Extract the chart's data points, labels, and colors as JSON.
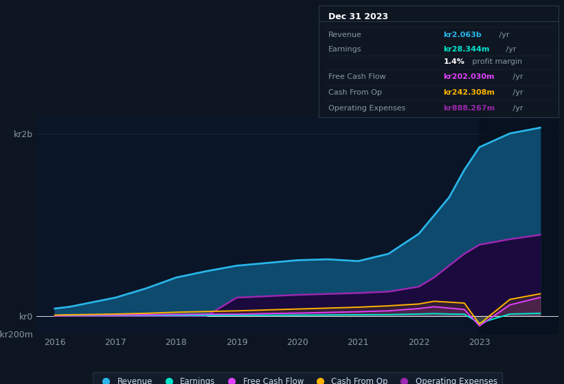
{
  "background_color": "#0d1520",
  "plot_bg_color": "#0a1628",
  "grid_color": "#1a2535",
  "years": [
    2016,
    2016.25,
    2017,
    2017.5,
    2018,
    2018.5,
    2019,
    2019.5,
    2020,
    2020.5,
    2021,
    2021.5,
    2022,
    2022.25,
    2022.5,
    2022.75,
    2023,
    2023.5,
    2024
  ],
  "revenue": [
    80,
    100,
    200,
    300,
    420,
    490,
    550,
    580,
    610,
    620,
    600,
    680,
    900,
    1100,
    1300,
    1600,
    1850,
    2000,
    2063
  ],
  "earnings": [
    5,
    5,
    6,
    6,
    5,
    5,
    6,
    7,
    8,
    10,
    12,
    14,
    20,
    25,
    20,
    18,
    -80,
    20,
    28
  ],
  "free_cash_flow": [
    5,
    8,
    10,
    12,
    15,
    18,
    18,
    25,
    30,
    38,
    45,
    55,
    80,
    100,
    85,
    70,
    -110,
    120,
    202
  ],
  "cash_from_op": [
    8,
    12,
    20,
    28,
    40,
    48,
    55,
    65,
    75,
    85,
    95,
    110,
    130,
    160,
    150,
    140,
    -90,
    180,
    242
  ],
  "operating_expenses": [
    0,
    0,
    0,
    0,
    0,
    0,
    200,
    215,
    230,
    240,
    250,
    265,
    320,
    420,
    550,
    680,
    780,
    840,
    888
  ],
  "revenue_color": "#29b5e8",
  "earnings_color": "#00e5cc",
  "free_cash_flow_color": "#e040fb",
  "cash_from_op_color": "#ffb300",
  "operating_expenses_color": "#9c27b0",
  "revenue_fill": "#0d4a6e",
  "operating_expenses_fill": "#1a0a3d",
  "ylim_min": -200,
  "ylim_max": 2200,
  "xlim_min": 2015.7,
  "xlim_max": 2024.3,
  "ytick_values": [
    -200,
    0,
    2000
  ],
  "ytick_labels": [
    "-kr200m",
    "kr0",
    "kr2b"
  ],
  "xticks": [
    2016,
    2017,
    2018,
    2019,
    2020,
    2021,
    2022,
    2023
  ],
  "info_box_title": "Dec 31 2023",
  "info_rows": [
    {
      "label": "Revenue",
      "value": "kr2.063b",
      "suffix": " /yr",
      "value_color": "#29b5e8"
    },
    {
      "label": "Earnings",
      "value": "kr28.344m",
      "suffix": " /yr",
      "value_color": "#00e5cc"
    },
    {
      "label": "",
      "value": "1.4%",
      "suffix": " profit margin",
      "value_color": "#ffffff"
    },
    {
      "label": "Free Cash Flow",
      "value": "kr202.030m",
      "suffix": " /yr",
      "value_color": "#e040fb"
    },
    {
      "label": "Cash From Op",
      "value": "kr242.308m",
      "suffix": " /yr",
      "value_color": "#ffb300"
    },
    {
      "label": "Operating Expenses",
      "value": "kr888.267m",
      "suffix": " /yr",
      "value_color": "#9c27b0"
    }
  ],
  "legend_items": [
    {
      "label": "Revenue",
      "color": "#29b5e8"
    },
    {
      "label": "Earnings",
      "color": "#00e5cc"
    },
    {
      "label": "Free Cash Flow",
      "color": "#e040fb"
    },
    {
      "label": "Cash From Op",
      "color": "#ffb300"
    },
    {
      "label": "Operating Expenses",
      "color": "#9c27b0"
    }
  ],
  "shade_x_start": 2023.0,
  "darker_shade_color": "#050d18"
}
